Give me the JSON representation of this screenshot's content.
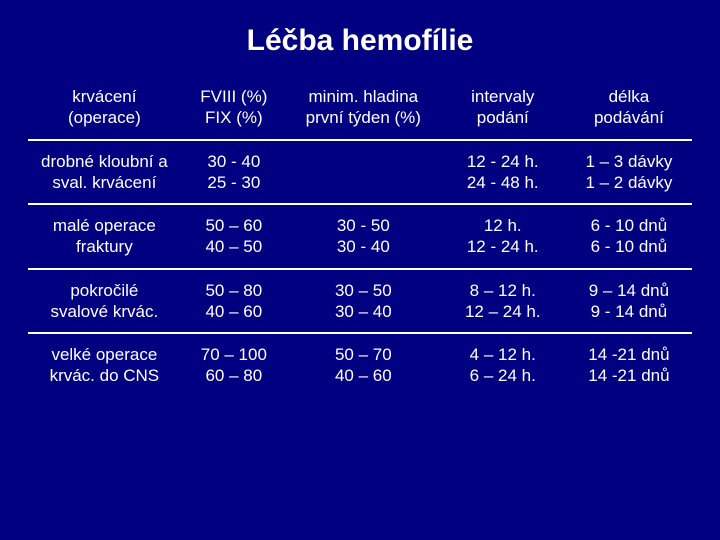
{
  "title": "Léčba hemofílie",
  "table": {
    "background_color": "#000080",
    "text_color": "#ffffff",
    "border_color": "#ffffff",
    "font_size_pt": 13,
    "columns": [
      {
        "line1": "krvácení",
        "line2": "(operace)"
      },
      {
        "line1": "FVIII (%)",
        "line2": "FIX (%)"
      },
      {
        "line1": "minim. hladina",
        "line2": "první týden (%)"
      },
      {
        "line1": "intervaly",
        "line2": "podání"
      },
      {
        "line1": "délka",
        "line2": "podávání"
      }
    ],
    "rows": [
      {
        "c0": {
          "line1": "drobné kloubní a",
          "line2": "sval. krvácení"
        },
        "c1": {
          "line1": "30 - 40",
          "line2": "25 - 30"
        },
        "c2": {
          "line1": "",
          "line2": ""
        },
        "c3": {
          "line1": "12 - 24 h.",
          "line2": "24 - 48 h."
        },
        "c4": {
          "line1": "1 – 3 dávky",
          "line2": "1 – 2 dávky"
        }
      },
      {
        "c0": {
          "line1": "malé operace",
          "line2": "fraktury"
        },
        "c1": {
          "line1": "50 – 60",
          "line2": "40 – 50"
        },
        "c2": {
          "line1": "30 - 50",
          "line2": "30 - 40"
        },
        "c3": {
          "line1": "12 h.",
          "line2": "12 - 24 h."
        },
        "c4": {
          "line1": "6 - 10 dnů",
          "line2": "6 - 10 dnů"
        }
      },
      {
        "c0": {
          "line1": "pokročilé",
          "line2": "svalové krvác."
        },
        "c1": {
          "line1": "50 – 80",
          "line2": "40 – 60"
        },
        "c2": {
          "line1": "30 – 50",
          "line2": "30 – 40"
        },
        "c3": {
          "line1": "8 – 12 h.",
          "line2": "12 – 24 h."
        },
        "c4": {
          "line1": "9 – 14 dnů",
          "line2": "9 - 14 dnů"
        }
      },
      {
        "c0": {
          "line1": "velké operace",
          "line2": "krvác. do CNS"
        },
        "c1": {
          "line1": "70 – 100",
          "line2": "60 – 80"
        },
        "c2": {
          "line1": "50 – 70",
          "line2": "40 – 60"
        },
        "c3": {
          "line1": "4 – 12 h.",
          "line2": "6 – 24 h."
        },
        "c4": {
          "line1": "14 -21 dnů",
          "line2": "14 -21 dnů"
        }
      }
    ]
  }
}
